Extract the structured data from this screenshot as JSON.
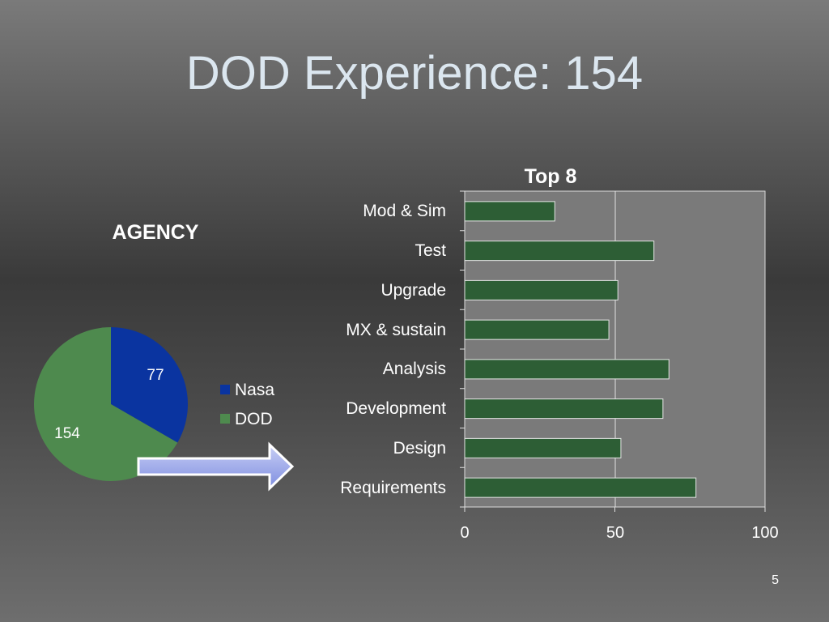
{
  "slide": {
    "title": "DOD Experience:  154",
    "page_number": "5"
  },
  "chart_data": [
    {
      "type": "pie",
      "title": "AGENCY",
      "categories": [
        "Nasa",
        "DOD"
      ],
      "values": [
        77,
        154
      ],
      "data_labels": [
        "77",
        "154"
      ],
      "colors": [
        "#0a34a0",
        "#4e8a4e"
      ],
      "legend": "right"
    },
    {
      "type": "bar",
      "orientation": "horizontal",
      "title": "Top 8",
      "categories": [
        "Mod & Sim",
        "Test",
        "Upgrade",
        "MX & sustain",
        "Analysis",
        "Development",
        "Design",
        "Requirements"
      ],
      "values": [
        30,
        63,
        51,
        48,
        68,
        66,
        52,
        77
      ],
      "xlim": [
        0,
        100
      ],
      "x_ticks": [
        "0",
        "50",
        "100"
      ],
      "grid": true,
      "bar_color": "#2d5e35",
      "plot_background": "#7a7a7a"
    }
  ]
}
